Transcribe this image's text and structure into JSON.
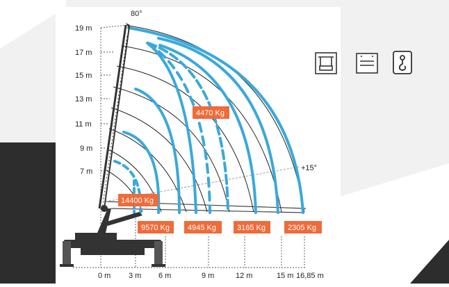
{
  "colors": {
    "background_light": "#f1f1f1",
    "background_dark": "#2d2d2d",
    "curve": "#3aa9da",
    "arc": "#222222",
    "label_fill": "#ee6b3a",
    "label_text": "#ffffff",
    "crane": "#333333"
  },
  "angles": {
    "top": "80°",
    "bottom": "+15°"
  },
  "heights": [
    "19 m",
    "17 m",
    "15 m",
    "13 m",
    "11 m",
    "9 m",
    "7 m"
  ],
  "reaches": [
    "0 m",
    "3 m",
    "6 m",
    "9 m",
    "12 m",
    "15 m",
    "16,85 m"
  ],
  "load_labels": {
    "peak": "4470 Kg",
    "left": "14400 Kg",
    "bottom": [
      "9570 Kg",
      "4945 Kg",
      "3165 Kg",
      "2305 Kg"
    ]
  },
  "icons": [
    "load-test-icon",
    "outrigger-icon",
    "hook-icon"
  ]
}
